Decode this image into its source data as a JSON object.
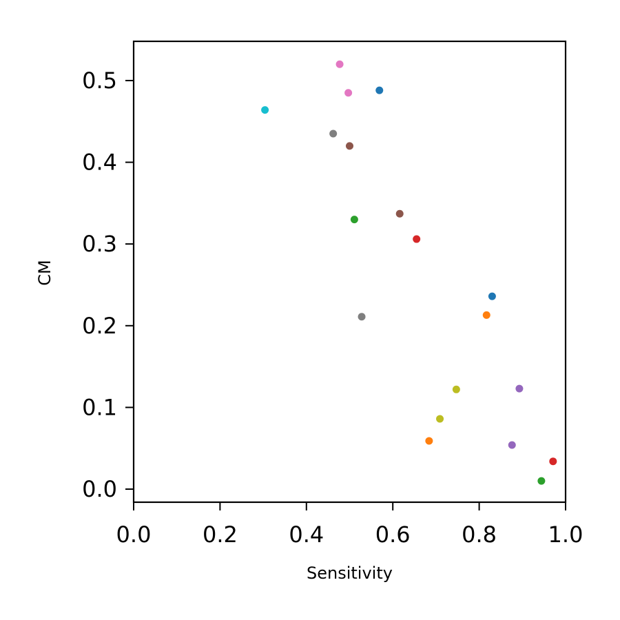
{
  "chart_data": {
    "type": "scatter",
    "title": "",
    "xlabel": "Sensitivity",
    "ylabel": "CM",
    "xlim": [
      0.0,
      1.0
    ],
    "ylim": [
      -0.016,
      0.548
    ],
    "xticks": [
      0.0,
      0.2,
      0.4,
      0.6,
      0.8,
      1.0
    ],
    "xtick_labels": [
      "0.0",
      "0.2",
      "0.4",
      "0.6",
      "0.8",
      "1.0"
    ],
    "yticks": [
      0.0,
      0.1,
      0.2,
      0.3,
      0.4,
      0.5
    ],
    "ytick_labels": [
      "0.0",
      "0.1",
      "0.2",
      "0.3",
      "0.4",
      "0.5"
    ],
    "grid": false,
    "legend": "none",
    "points": [
      {
        "x": 0.569,
        "y": 0.488,
        "color": "#1f77b4"
      },
      {
        "x": 0.83,
        "y": 0.236,
        "color": "#1f77b4"
      },
      {
        "x": 0.817,
        "y": 0.213,
        "color": "#ff7f0e"
      },
      {
        "x": 0.684,
        "y": 0.059,
        "color": "#ff7f0e"
      },
      {
        "x": 0.511,
        "y": 0.33,
        "color": "#2ca02c"
      },
      {
        "x": 0.944,
        "y": 0.01,
        "color": "#2ca02c"
      },
      {
        "x": 0.655,
        "y": 0.306,
        "color": "#d62728"
      },
      {
        "x": 0.971,
        "y": 0.034,
        "color": "#d62728"
      },
      {
        "x": 0.893,
        "y": 0.123,
        "color": "#9467bd"
      },
      {
        "x": 0.876,
        "y": 0.054,
        "color": "#9467bd"
      },
      {
        "x": 0.616,
        "y": 0.337,
        "color": "#8c564b"
      },
      {
        "x": 0.5,
        "y": 0.42,
        "color": "#8c564b"
      },
      {
        "x": 0.477,
        "y": 0.52,
        "color": "#e377c2"
      },
      {
        "x": 0.497,
        "y": 0.485,
        "color": "#e377c2"
      },
      {
        "x": 0.462,
        "y": 0.435,
        "color": "#7f7f7f"
      },
      {
        "x": 0.528,
        "y": 0.211,
        "color": "#7f7f7f"
      },
      {
        "x": 0.747,
        "y": 0.122,
        "color": "#bcbd22"
      },
      {
        "x": 0.709,
        "y": 0.086,
        "color": "#bcbd22"
      },
      {
        "x": 0.304,
        "y": 0.464,
        "color": "#17becf"
      }
    ]
  }
}
